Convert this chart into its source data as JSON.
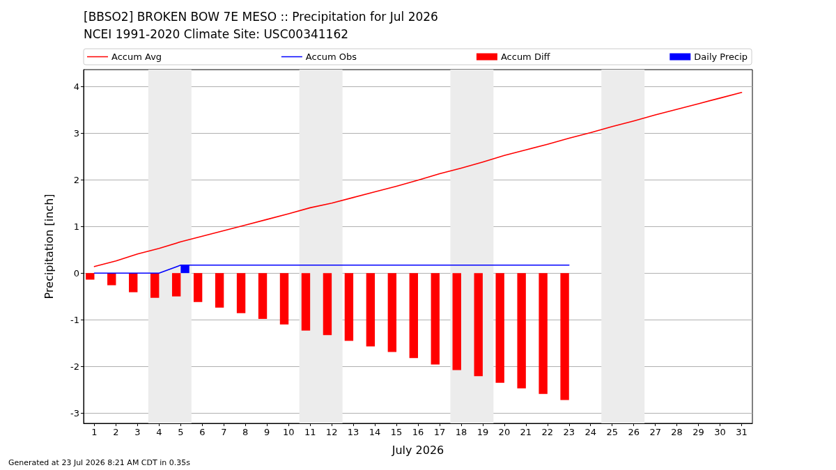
{
  "chart_data": {
    "type": "bar",
    "title": "[BBSO2] BROKEN BOW 7E MESO :: Precipitation for Jul 2026",
    "subtitle": "NCEI 1991-2020 Climate Site: USC00341162",
    "xlabel": "July 2026",
    "ylabel": "Precipitation [inch]",
    "annotations": [
      "Generated at 23 Jul 2026 8:21 AM CDT in 0.35s"
    ],
    "x": [
      1,
      2,
      3,
      4,
      5,
      6,
      7,
      8,
      9,
      10,
      11,
      12,
      13,
      14,
      15,
      16,
      17,
      18,
      19,
      20,
      21,
      22,
      23
    ],
    "series": [
      {
        "name": "Accum Avg",
        "type": "line",
        "color": "#ff0000",
        "x": [
          1,
          2,
          3,
          4,
          5,
          6,
          7,
          8,
          9,
          10,
          11,
          12,
          13,
          14,
          15,
          16,
          17,
          18,
          19,
          20,
          21,
          22,
          23,
          24,
          25,
          26,
          27,
          28,
          29,
          30,
          31
        ],
        "values": [
          0.14,
          0.26,
          0.41,
          0.53,
          0.67,
          0.79,
          0.91,
          1.03,
          1.15,
          1.27,
          1.4,
          1.5,
          1.62,
          1.74,
          1.86,
          1.99,
          2.13,
          2.25,
          2.38,
          2.52,
          2.64,
          2.76,
          2.89,
          3.01,
          3.14,
          3.26,
          3.39,
          3.51,
          3.63,
          3.75,
          3.87
        ]
      },
      {
        "name": "Accum Obs",
        "type": "line",
        "color": "#0000ff",
        "values": [
          0,
          0,
          0,
          0,
          0.17,
          0.17,
          0.17,
          0.17,
          0.17,
          0.17,
          0.17,
          0.17,
          0.17,
          0.17,
          0.17,
          0.17,
          0.17,
          0.17,
          0.17,
          0.17,
          0.17,
          0.17,
          0.17
        ]
      },
      {
        "name": "Accum Diff",
        "color": "#ff0000",
        "values": [
          -0.14,
          -0.26,
          -0.41,
          -0.53,
          -0.5,
          -0.62,
          -0.74,
          -0.86,
          -0.98,
          -1.1,
          -1.23,
          -1.33,
          -1.45,
          -1.57,
          -1.69,
          -1.82,
          -1.96,
          -2.08,
          -2.21,
          -2.35,
          -2.47,
          -2.59,
          -2.72
        ]
      },
      {
        "name": "Daily Precip",
        "color": "#0000ff",
        "x": [
          5
        ],
        "values": [
          0.17
        ]
      }
    ],
    "xlim": [
      0.5,
      31.5
    ],
    "xticks": [
      1,
      2,
      3,
      4,
      5,
      6,
      7,
      8,
      9,
      10,
      11,
      12,
      13,
      14,
      15,
      16,
      17,
      18,
      19,
      20,
      21,
      22,
      23,
      24,
      25,
      26,
      27,
      28,
      29,
      30,
      31
    ],
    "ylim": [
      -3.22,
      4.36
    ],
    "yticks": [
      -3,
      -2,
      -1,
      0,
      1,
      2,
      3,
      4
    ],
    "bands": [
      {
        "axis": "x",
        "from": 3.5,
        "to": 5.5,
        "color": "#ececec"
      },
      {
        "axis": "x",
        "from": 10.5,
        "to": 12.5,
        "color": "#ececec"
      },
      {
        "axis": "x",
        "from": 17.5,
        "to": 19.5,
        "color": "#ececec"
      },
      {
        "axis": "x",
        "from": 24.5,
        "to": 26.5,
        "color": "#ececec"
      }
    ],
    "grid": "y",
    "legend": "top",
    "marker": "none",
    "line_style": "solid"
  }
}
